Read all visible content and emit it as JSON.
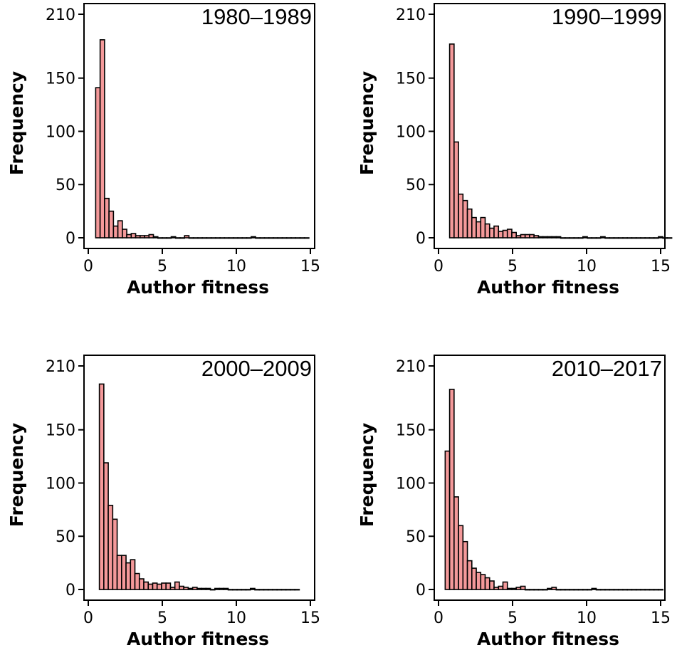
{
  "chart_data": [
    {
      "type": "bar",
      "title": "1980–1989",
      "xlabel": "Author fitness",
      "ylabel": "Frequency",
      "xlim": [
        0,
        15
      ],
      "ylim": [
        0,
        210
      ],
      "xticks": [
        "0",
        "5",
        "10",
        "15"
      ],
      "yticks": [
        "0",
        "50",
        "100",
        "150",
        "210"
      ],
      "bin_width": 0.3,
      "bar_color": "#f4999a",
      "bins_start": 0.5,
      "values": [
        141,
        186,
        37,
        25,
        11,
        16,
        8,
        3,
        4,
        2,
        2,
        2,
        3,
        1,
        0,
        0,
        0,
        1,
        0,
        0,
        2,
        0,
        0,
        0,
        0,
        0,
        0,
        0,
        0,
        0,
        0,
        0,
        0,
        0,
        0,
        1,
        0,
        0,
        0,
        0,
        0,
        0,
        0,
        0,
        0,
        0,
        0,
        0
      ]
    },
    {
      "type": "bar",
      "title": "1990–1999",
      "xlabel": "Author fitness",
      "ylabel": "Frequency",
      "xlim": [
        0,
        15
      ],
      "ylim": [
        0,
        210
      ],
      "xticks": [
        "0",
        "5",
        "10",
        "15"
      ],
      "yticks": [
        "0",
        "50",
        "100",
        "150",
        "210"
      ],
      "bin_width": 0.3,
      "bar_color": "#f4999a",
      "bins_start": 0.75,
      "values": [
        182,
        90,
        41,
        35,
        27,
        19,
        15,
        19,
        13,
        9,
        11,
        6,
        7,
        8,
        5,
        2,
        3,
        3,
        3,
        2,
        1,
        1,
        1,
        1,
        1,
        0,
        0,
        0,
        0,
        0,
        1,
        0,
        0,
        0,
        1,
        0,
        0,
        0,
        0,
        0,
        0,
        0,
        0,
        0,
        0,
        0,
        0,
        1,
        0,
        0
      ]
    },
    {
      "type": "bar",
      "title": "2000–2009",
      "xlabel": "Author fitness",
      "ylabel": "Frequency",
      "xlim": [
        0,
        15
      ],
      "ylim": [
        0,
        210
      ],
      "xticks": [
        "0",
        "5",
        "10",
        "15"
      ],
      "yticks": [
        "0",
        "50",
        "100",
        "150",
        "210"
      ],
      "bin_width": 0.3,
      "bar_color": "#f4999a",
      "bins_start": 0.75,
      "values": [
        193,
        119,
        79,
        66,
        32,
        32,
        25,
        28,
        15,
        10,
        7,
        5,
        6,
        5,
        6,
        6,
        2,
        7,
        3,
        2,
        1,
        2,
        1,
        1,
        1,
        0,
        1,
        1,
        1,
        0,
        0,
        0,
        0,
        0,
        1,
        0,
        0,
        0,
        0,
        0,
        0,
        0,
        0,
        0,
        0
      ]
    },
    {
      "type": "bar",
      "title": "2010–2017",
      "xlabel": "Author fitness",
      "ylabel": "Frequency",
      "xlim": [
        0,
        15
      ],
      "ylim": [
        0,
        210
      ],
      "xticks": [
        "0",
        "5",
        "10",
        "15"
      ],
      "yticks": [
        "0",
        "50",
        "100",
        "150",
        "210"
      ],
      "bin_width": 0.3,
      "bar_color": "#f4999a",
      "bins_start": 0.45,
      "values": [
        130,
        188,
        87,
        60,
        45,
        27,
        20,
        16,
        14,
        11,
        8,
        2,
        3,
        7,
        1,
        1,
        2,
        3,
        0,
        0,
        0,
        0,
        0,
        1,
        2,
        0,
        0,
        0,
        0,
        0,
        0,
        0,
        0,
        1,
        0,
        0,
        0,
        0,
        0,
        0,
        0,
        0,
        0,
        0,
        0,
        0,
        0,
        0,
        0
      ]
    }
  ]
}
